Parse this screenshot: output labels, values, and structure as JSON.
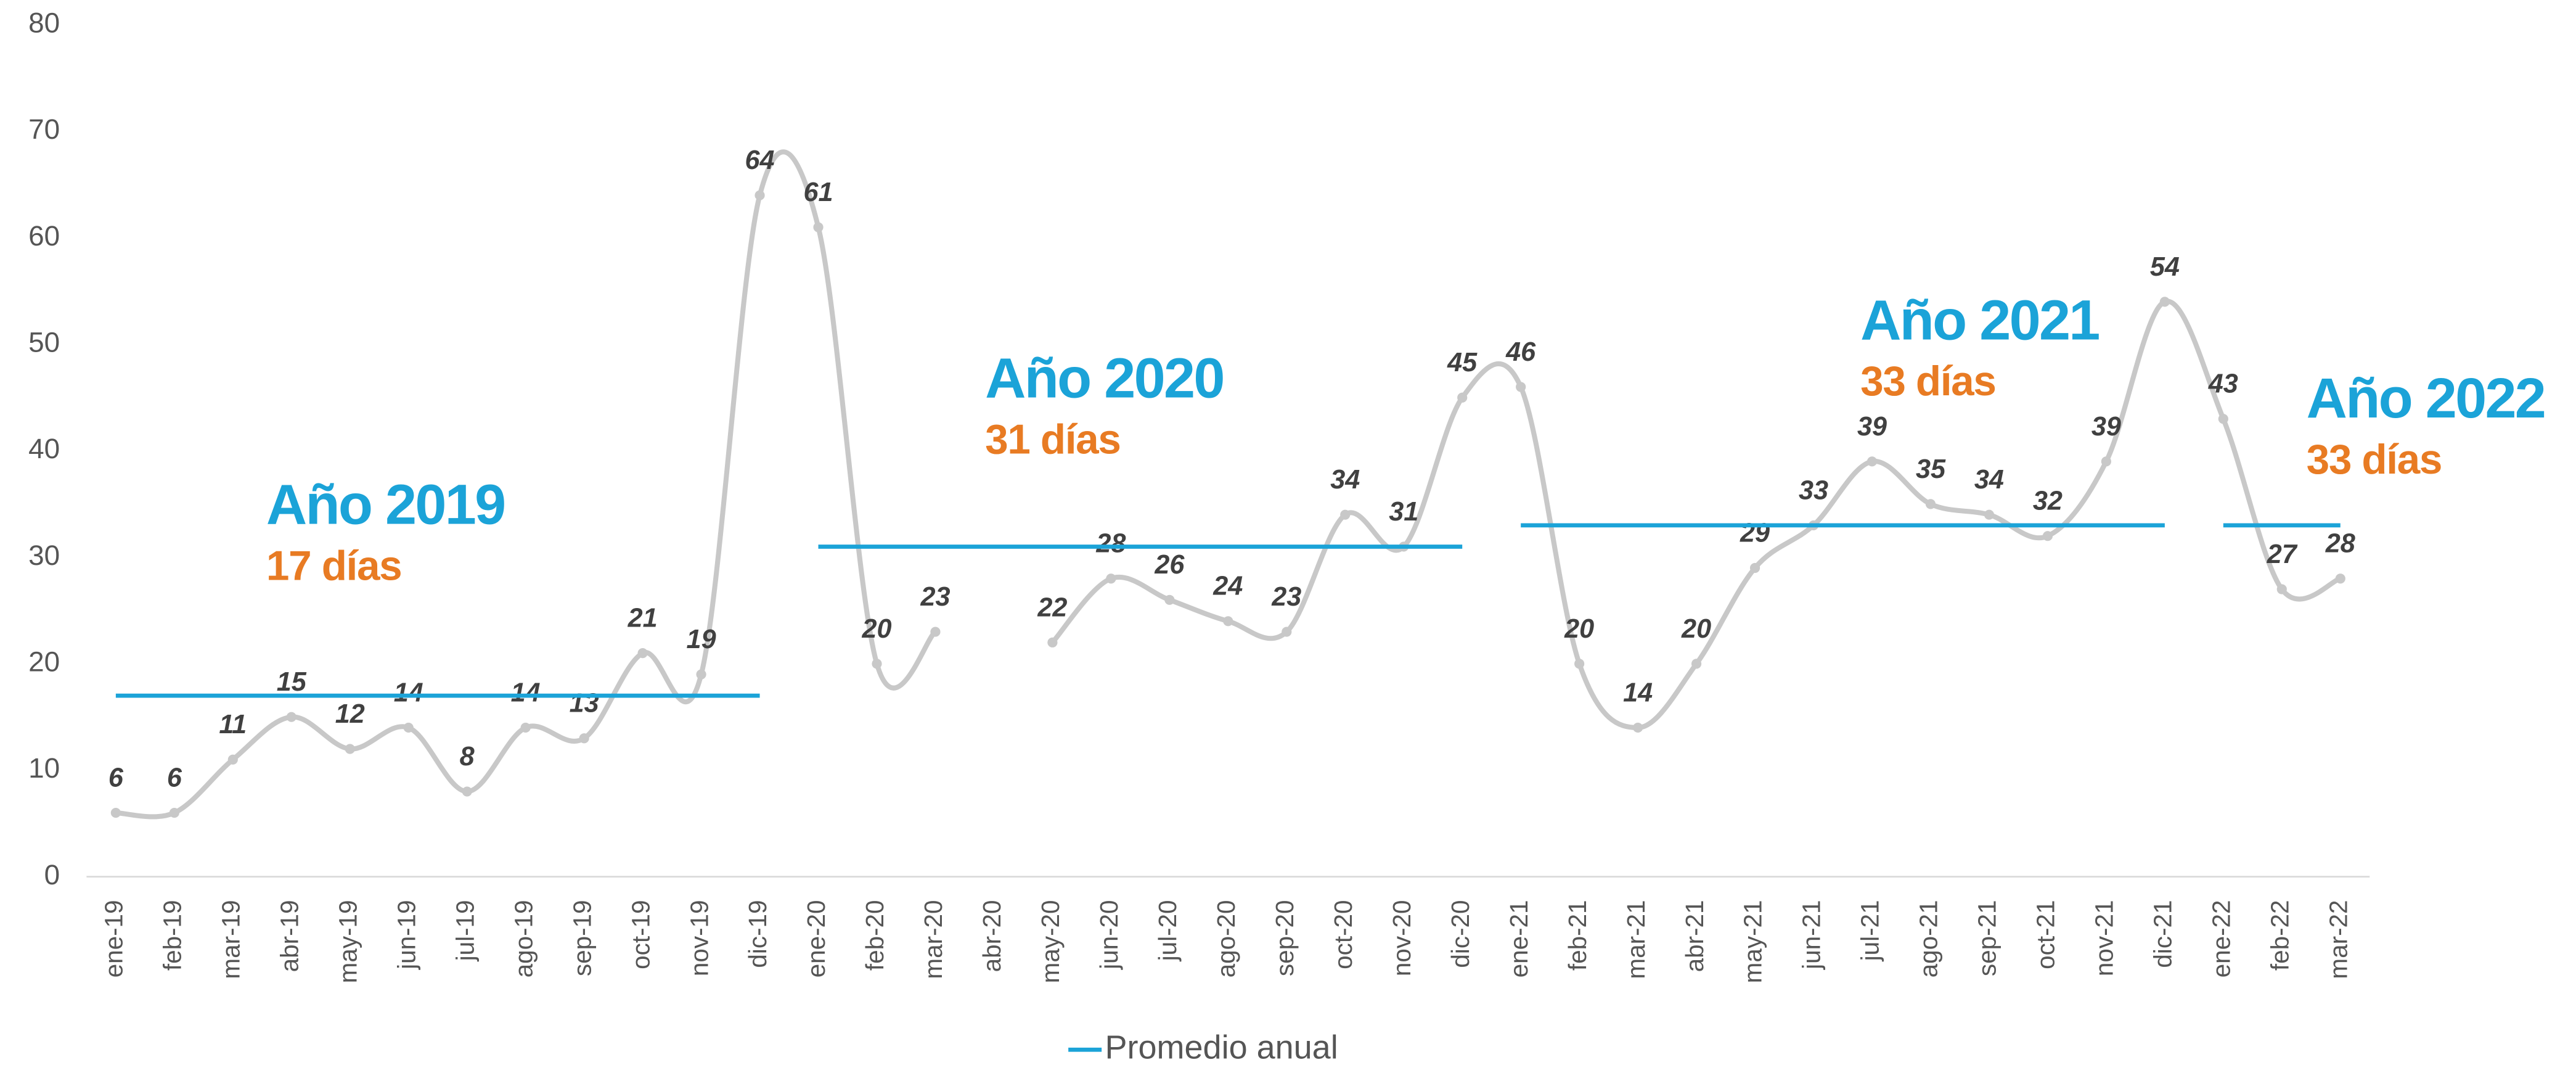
{
  "chart_data": {
    "type": "line",
    "categories": [
      "ene-19",
      "feb-19",
      "mar-19",
      "abr-19",
      "may-19",
      "jun-19",
      "jul-19",
      "ago-19",
      "sep-19",
      "oct-19",
      "nov-19",
      "dic-19",
      "ene-20",
      "feb-20",
      "mar-20",
      "abr-20",
      "may-20",
      "jun-20",
      "jul-20",
      "ago-20",
      "sep-20",
      "oct-20",
      "nov-20",
      "dic-20",
      "ene-21",
      "feb-21",
      "mar-21",
      "abr-21",
      "may-21",
      "jun-21",
      "jul-21",
      "ago-21",
      "sep-21",
      "oct-21",
      "nov-21",
      "dic-21",
      "ene-22",
      "feb-22",
      "mar-22"
    ],
    "series": [
      {
        "color": "#c8c8c8",
        "values": [
          6,
          6,
          11,
          15,
          12,
          14,
          8,
          14,
          13,
          21,
          19,
          64,
          61,
          20,
          23,
          null,
          22,
          28,
          26,
          24,
          23,
          34,
          31,
          45,
          46,
          20,
          14,
          20,
          29,
          33,
          39,
          35,
          34,
          32,
          39,
          54,
          43,
          27,
          28
        ]
      },
      {
        "name": "Promedio anual",
        "color": "#1ba3d8",
        "values": [
          17,
          17,
          17,
          17,
          17,
          17,
          17,
          17,
          17,
          17,
          17,
          17,
          31,
          31,
          31,
          31,
          31,
          31,
          31,
          31,
          31,
          31,
          31,
          31,
          33,
          33,
          33,
          33,
          33,
          33,
          33,
          33,
          33,
          33,
          33,
          33,
          33,
          33,
          33
        ]
      }
    ],
    "ylim": [
      0,
      80
    ],
    "yticks": [
      0,
      10,
      20,
      30,
      40,
      50,
      60,
      70,
      80
    ],
    "grid": false,
    "annotations": [
      {
        "title": "Año 2019",
        "subtitle": "17 días"
      },
      {
        "title": "Año 2020",
        "subtitle": "31 días"
      },
      {
        "title": "Año 2021",
        "subtitle": "33 días"
      },
      {
        "title": "Año 2022",
        "subtitle": "33 días"
      }
    ],
    "legend": "bottom"
  }
}
